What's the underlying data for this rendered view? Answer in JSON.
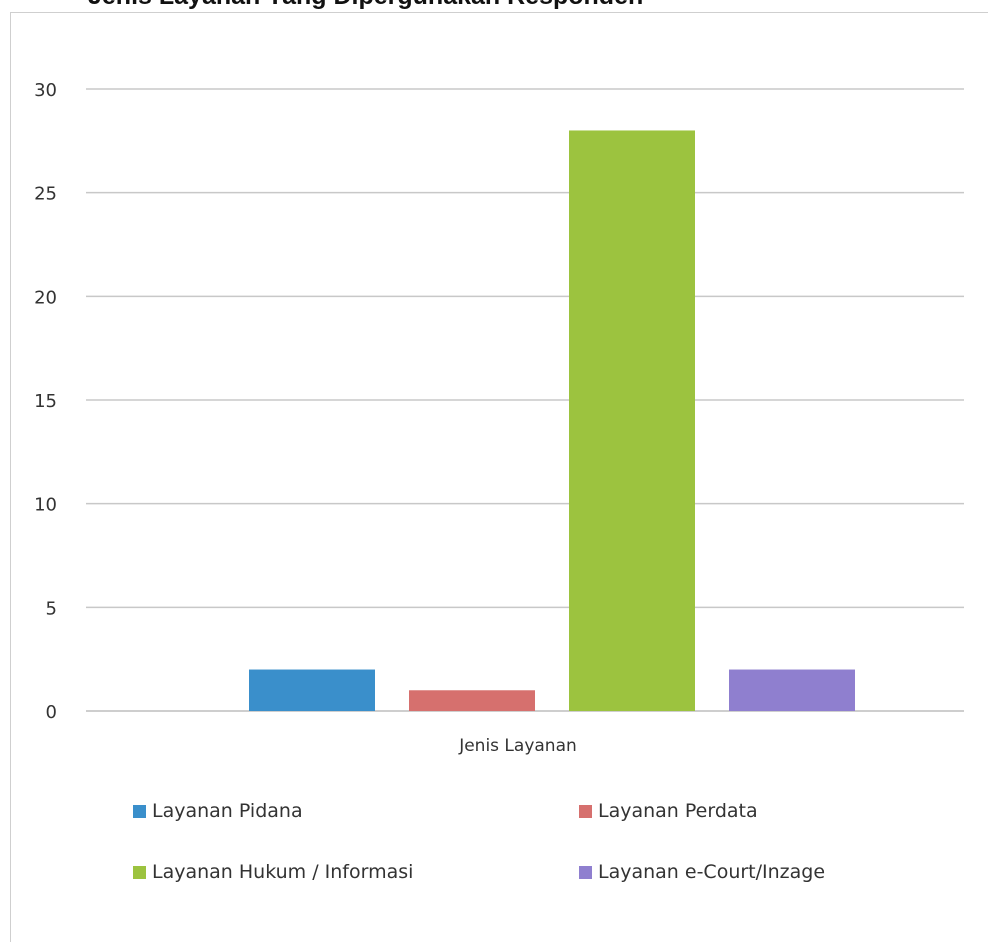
{
  "chart_data": {
    "type": "bar",
    "title": "Jenis Layanan Yang Dipergunakan Responden",
    "xlabel": "Jenis Layanan",
    "ylabel": "",
    "categories": [
      "Jenis Layanan"
    ],
    "series": [
      {
        "name": "Layanan Pidana",
        "values": [
          2
        ],
        "color": "#3a8fcb"
      },
      {
        "name": "Layanan Perdata",
        "values": [
          1
        ],
        "color": "#d6706e"
      },
      {
        "name": "Layanan Hukum / Informasi",
        "values": [
          28
        ],
        "color": "#9cc33f"
      },
      {
        "name": "Layanan e-Court/Inzage",
        "values": [
          2
        ],
        "color": "#8f7fcf"
      }
    ],
    "ylim": [
      0,
      30
    ],
    "yticks": [
      "0",
      "5",
      "10",
      "15",
      "20",
      "25",
      "30"
    ],
    "grid": true,
    "legend_position": "bottom"
  }
}
